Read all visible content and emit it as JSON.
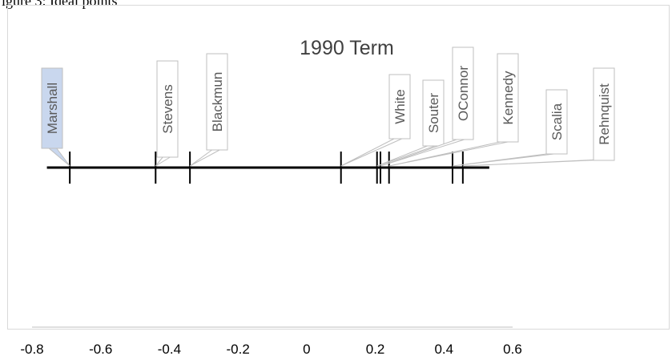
{
  "caption_fragment": "igure 3:  Ideal points",
  "chart_data": {
    "type": "scatter",
    "title": "1990 Term",
    "xlabel": "",
    "ylabel": "",
    "xlim": [
      -0.8,
      0.6
    ],
    "x_ticks": [
      -0.8,
      -0.6,
      -0.4,
      -0.2,
      0,
      0.2,
      0.4,
      0.6
    ],
    "x_tick_labels": [
      "-0.8",
      "-0.6",
      "-0.4",
      "-0.2",
      "0",
      "0.2",
      "0.4",
      "0.6"
    ],
    "line_range": [
      -0.71,
      0.49
    ],
    "grid": false,
    "points": [
      {
        "label": "Marshall",
        "x": -0.69,
        "highlight": true
      },
      {
        "label": "Stevens",
        "x": -0.44
      },
      {
        "label": "Blackmun",
        "x": -0.34
      },
      {
        "label": "White",
        "x": 0.1
      },
      {
        "label": "Souter",
        "x": 0.205
      },
      {
        "label": "OConnor",
        "x": 0.215
      },
      {
        "label": "Kennedy",
        "x": 0.24
      },
      {
        "label": "Scalia",
        "x": 0.425
      },
      {
        "label": "Rehnquist",
        "x": 0.455
      }
    ],
    "colors": {
      "highlight_fill": "#c9d7ee",
      "callout_border": "#bfbfbf",
      "axis": "#bfbfbf",
      "line": "#000000"
    }
  }
}
